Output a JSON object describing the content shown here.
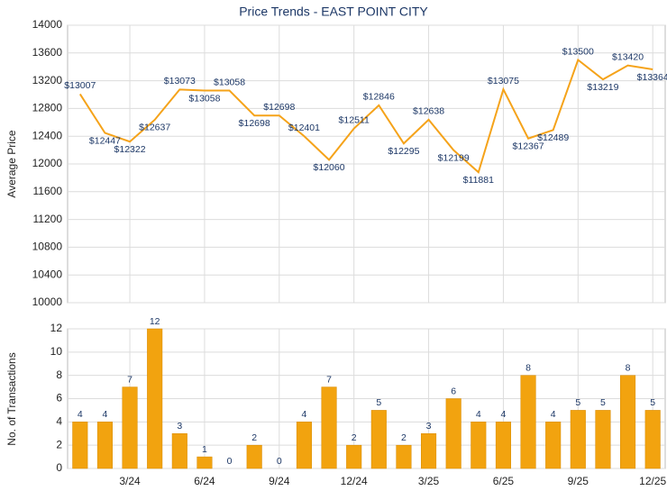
{
  "chart_data": [
    {
      "type": "line",
      "title": "Price Trends - EAST POINT CITY",
      "y_label": "Average Price",
      "values": [
        13007,
        12447,
        12322,
        12637,
        13073,
        13058,
        13058,
        12698,
        12698,
        12401,
        12060,
        12511,
        12846,
        12295,
        12638,
        12199,
        11881,
        13075,
        12367,
        12489,
        13500,
        13219,
        13420,
        13364
      ],
      "value_labels": [
        "$13007",
        "$12447",
        "$12322",
        "$12637",
        "$13073",
        "$13058",
        "$13058",
        "$12698",
        "$12698",
        "$12401",
        "$12060",
        "$12511",
        "$12846",
        "$12295",
        "$12638",
        "$12199",
        "$11881",
        "$13075",
        "$12367",
        "$12489",
        "$13500",
        "$13219",
        "$13420",
        "$13364"
      ],
      "color": "#f5a31a",
      "ylim": [
        10000,
        14000
      ],
      "yticks": [
        10000,
        10400,
        10800,
        11200,
        11600,
        12000,
        12400,
        12800,
        13200,
        13600,
        14000
      ],
      "grid": true
    },
    {
      "type": "bar",
      "y_label": "No. of Transactions",
      "categories": [
        null,
        null,
        "3/24",
        null,
        null,
        "6/24",
        null,
        null,
        "9/24",
        null,
        null,
        "12/24",
        null,
        null,
        "3/25",
        null,
        null,
        "6/25",
        null,
        null,
        "9/25",
        null,
        null,
        "12/25"
      ],
      "values": [
        4,
        4,
        7,
        12,
        3,
        1,
        0,
        2,
        0,
        4,
        7,
        2,
        5,
        2,
        3,
        6,
        4,
        4,
        8,
        4,
        5,
        5,
        8,
        5
      ],
      "color": "#f2a30f",
      "ylim": [
        0,
        12
      ],
      "yticks": [
        0,
        2,
        4,
        6,
        8,
        10,
        12
      ],
      "grid": true
    }
  ]
}
